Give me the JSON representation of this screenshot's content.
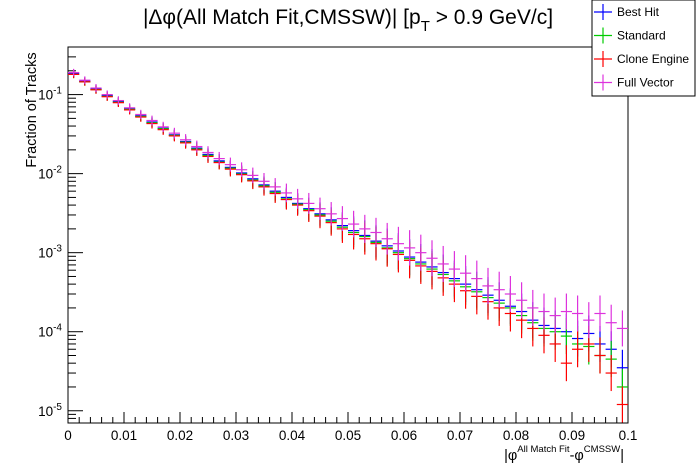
{
  "chart_data": {
    "type": "scatter",
    "title_parts": {
      "pre": "|Δφ(All Match Fit,CMSSW)| [p",
      "sub": "T",
      "post": " > 0.9 GeV/c]"
    },
    "xlabel_parts": {
      "a": "|φ",
      "a_sup": "All Match Fit",
      "b": "-φ",
      "b_sup": "CMSSW",
      "c": "|"
    },
    "ylabel": "Fraction of Tracks",
    "xlim": [
      0,
      0.1
    ],
    "ylim": [
      7e-06,
      0.4
    ],
    "yscale": "log",
    "x_ticks": [
      {
        "v": 0,
        "label": "0"
      },
      {
        "v": 0.01,
        "label": "0.01"
      },
      {
        "v": 0.02,
        "label": "0.02"
      },
      {
        "v": 0.03,
        "label": "0.03"
      },
      {
        "v": 0.04,
        "label": "0.04"
      },
      {
        "v": 0.05,
        "label": "0.05"
      },
      {
        "v": 0.06,
        "label": "0.06"
      },
      {
        "v": 0.07,
        "label": "0.07"
      },
      {
        "v": 0.08,
        "label": "0.08"
      },
      {
        "v": 0.09,
        "label": "0.09"
      },
      {
        "v": 0.1,
        "label": "0.1"
      }
    ],
    "y_ticks": [
      {
        "v": 1e-05,
        "base": "10",
        "exp": "-5"
      },
      {
        "v": 0.0001,
        "base": "10",
        "exp": "-4"
      },
      {
        "v": 0.001,
        "base": "10",
        "exp": "-3"
      },
      {
        "v": 0.01,
        "base": "10",
        "exp": "-2"
      },
      {
        "v": 0.1,
        "base": "10",
        "exp": "-1"
      }
    ],
    "legend_position": "top-right",
    "x": [
      0.001,
      0.003,
      0.005,
      0.007,
      0.009,
      0.011,
      0.013,
      0.015,
      0.017,
      0.019,
      0.021,
      0.023,
      0.025,
      0.027,
      0.029,
      0.031,
      0.033,
      0.035,
      0.037,
      0.039,
      0.041,
      0.043,
      0.045,
      0.047,
      0.049,
      0.051,
      0.053,
      0.055,
      0.057,
      0.059,
      0.061,
      0.063,
      0.065,
      0.067,
      0.069,
      0.071,
      0.073,
      0.075,
      0.077,
      0.079,
      0.081,
      0.083,
      0.085,
      0.087,
      0.089,
      0.091,
      0.093,
      0.095,
      0.097,
      0.099
    ],
    "series": [
      {
        "name": "Best Hit",
        "color": "#0000ff",
        "values": [
          0.185,
          0.148,
          0.118,
          0.097,
          0.082,
          0.066,
          0.054,
          0.045,
          0.0375,
          0.031,
          0.0255,
          0.021,
          0.0175,
          0.0145,
          0.012,
          0.0102,
          0.0086,
          0.0072,
          0.006,
          0.005,
          0.0042,
          0.0036,
          0.0031,
          0.0026,
          0.0022,
          0.0019,
          0.00165,
          0.0014,
          0.00122,
          0.00105,
          0.00088,
          0.00076,
          0.00066,
          0.00056,
          0.00047,
          0.0004,
          0.00034,
          0.00029,
          0.00025,
          0.00021,
          0.00018,
          0.00014,
          0.00012,
          0.00011,
          0.0001,
          8.2e-05,
          9.5e-05,
          7e-05,
          6e-05,
          3.5e-05
        ]
      },
      {
        "name": "Standard",
        "color": "#00cc00",
        "values": [
          0.18,
          0.145,
          0.116,
          0.095,
          0.08,
          0.065,
          0.053,
          0.044,
          0.037,
          0.0305,
          0.025,
          0.0205,
          0.017,
          0.014,
          0.0117,
          0.0099,
          0.0083,
          0.007,
          0.0058,
          0.0048,
          0.0041,
          0.0035,
          0.003,
          0.0025,
          0.0021,
          0.0018,
          0.0016,
          0.00135,
          0.00115,
          0.001,
          0.00084,
          0.00072,
          0.00062,
          0.00053,
          0.00044,
          0.00037,
          0.00032,
          0.00027,
          0.00023,
          0.0002,
          0.00016,
          0.00013,
          0.00011,
          0.0001,
          8.8e-05,
          7e-05,
          6.5e-05,
          5e-05,
          4.5e-05,
          2e-05
        ]
      },
      {
        "name": "Clone Engine",
        "color": "#ff0000",
        "values": [
          0.18,
          0.145,
          0.115,
          0.094,
          0.079,
          0.064,
          0.052,
          0.043,
          0.036,
          0.03,
          0.0245,
          0.02,
          0.0165,
          0.0138,
          0.0114,
          0.0097,
          0.0081,
          0.0068,
          0.0056,
          0.0047,
          0.004,
          0.0034,
          0.0029,
          0.0024,
          0.002,
          0.0017,
          0.0015,
          0.0013,
          0.00112,
          0.00095,
          0.0008,
          0.00068,
          0.00058,
          0.00048,
          0.0004,
          0.00033,
          0.00028,
          0.00024,
          0.0002,
          0.00017,
          0.00014,
          0.00011,
          9e-05,
          7e-05,
          4e-05,
          6e-05,
          7e-05,
          5e-05,
          3e-05,
          1.2e-05
        ]
      },
      {
        "name": "Full Vector",
        "color": "#dd33dd",
        "values": [
          0.19,
          0.152,
          0.121,
          0.1,
          0.084,
          0.068,
          0.056,
          0.047,
          0.039,
          0.0325,
          0.0268,
          0.022,
          0.0185,
          0.0155,
          0.013,
          0.0112,
          0.0095,
          0.008,
          0.0068,
          0.0057,
          0.0048,
          0.0042,
          0.0036,
          0.0031,
          0.0027,
          0.0023,
          0.002,
          0.0018,
          0.0015,
          0.0013,
          0.00115,
          0.001,
          0.00085,
          0.00072,
          0.00062,
          0.00055,
          0.00047,
          0.00038,
          0.00034,
          0.0003,
          0.00025,
          0.0002,
          0.00018,
          0.00016,
          0.00018,
          0.00017,
          0.00014,
          0.00017,
          0.00013,
          0.00011
        ]
      }
    ]
  }
}
